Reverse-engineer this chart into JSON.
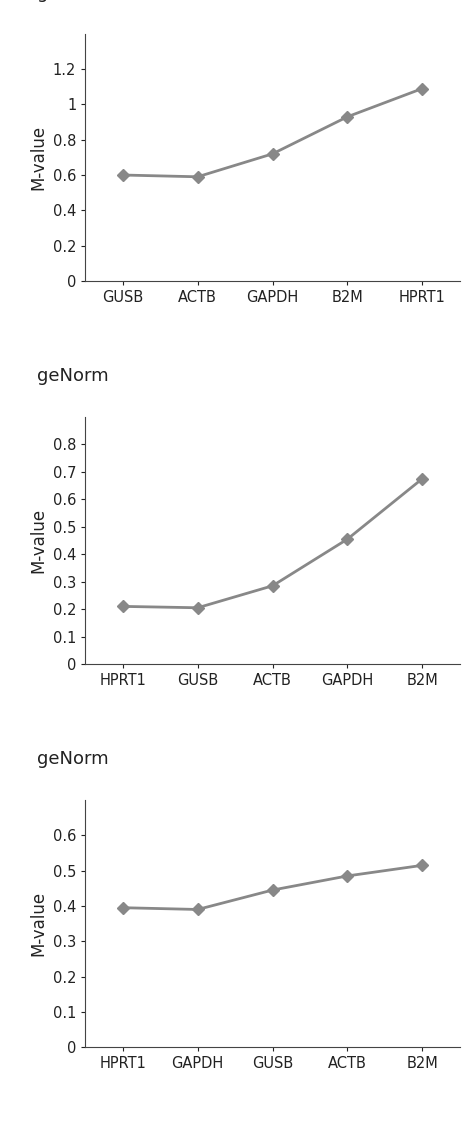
{
  "plots": [
    {
      "title": "geNorm",
      "x_labels": [
        "GUSB",
        "ACTB",
        "GAPDH",
        "B2M",
        "HPRT1"
      ],
      "y_values": [
        0.6,
        0.59,
        0.72,
        0.93,
        1.09
      ],
      "ylim": [
        0,
        1.4
      ],
      "yticks": [
        0,
        0.2,
        0.4,
        0.6,
        0.8,
        1.0,
        1.2
      ],
      "ylabel": "M-value"
    },
    {
      "title": "geNorm",
      "x_labels": [
        "HPRT1",
        "GUSB",
        "ACTB",
        "GAPDH",
        "B2M"
      ],
      "y_values": [
        0.21,
        0.205,
        0.285,
        0.455,
        0.675
      ],
      "ylim": [
        0,
        0.9
      ],
      "yticks": [
        0,
        0.1,
        0.2,
        0.3,
        0.4,
        0.5,
        0.6,
        0.7,
        0.8
      ],
      "ylabel": "M-value"
    },
    {
      "title": "geNorm",
      "x_labels": [
        "HPRT1",
        "GAPDH",
        "GUSB",
        "ACTB",
        "B2M"
      ],
      "y_values": [
        0.395,
        0.39,
        0.445,
        0.485,
        0.515
      ],
      "ylim": [
        0,
        0.7
      ],
      "yticks": [
        0,
        0.1,
        0.2,
        0.3,
        0.4,
        0.5,
        0.6
      ],
      "ylabel": "M-value"
    }
  ],
  "line_color": "#888888",
  "marker_color": "#888888",
  "marker": "D",
  "marker_size": 6,
  "line_width": 2.0,
  "font_color": "#222222",
  "background_color": "#ffffff",
  "title_fontsize": 13,
  "label_fontsize": 12,
  "tick_fontsize": 10.5
}
